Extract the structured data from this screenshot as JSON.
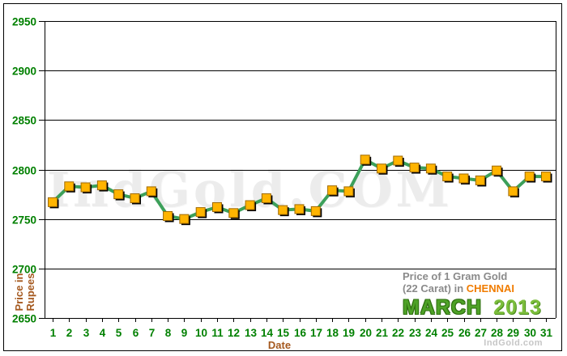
{
  "watermark": {
    "text": "IndGold.COM"
  },
  "branding": {
    "site": "IndGold.com"
  },
  "legend": {
    "line1": "Price of 1 Gram Gold",
    "line2_prefix": "(22 Carat) in ",
    "city": "CHENNAI",
    "month": "MARCH",
    "year": "2013"
  },
  "axes": {
    "y_title_line1": "Price in",
    "y_title_line2": "Rupees",
    "x_title": "Date"
  },
  "colors": {
    "axis_label_green": "#008000",
    "grid_black": "#000000",
    "line_green": "#3ca05a",
    "marker_orange": "#ffb400",
    "marker_border": "#a06a00",
    "marker_shadow": "#000000",
    "axis_title_brown": "#a5591f"
  },
  "chart_data": {
    "type": "line",
    "title": "Price of 1 Gram Gold (22 Carat) in CHENNAI - MARCH 2013",
    "xlabel": "Date",
    "ylabel": "Price in Rupees",
    "ylim": [
      2650,
      2950
    ],
    "yticks": [
      2950,
      2900,
      2850,
      2800,
      2750,
      2700,
      2650
    ],
    "grid": true,
    "legend_position": "bottom-right",
    "x": [
      1,
      2,
      3,
      4,
      5,
      6,
      7,
      8,
      9,
      10,
      11,
      12,
      13,
      14,
      15,
      16,
      17,
      18,
      19,
      20,
      21,
      22,
      23,
      24,
      25,
      26,
      27,
      28,
      29,
      30,
      31
    ],
    "values": [
      2767,
      2783,
      2782,
      2784,
      2775,
      2771,
      2778,
      2753,
      2750,
      2757,
      2762,
      2756,
      2764,
      2771,
      2759,
      2760,
      2758,
      2779,
      2778,
      2810,
      2801,
      2809,
      2802,
      2801,
      2793,
      2791,
      2789,
      2799,
      2778,
      2793,
      2793
    ]
  }
}
